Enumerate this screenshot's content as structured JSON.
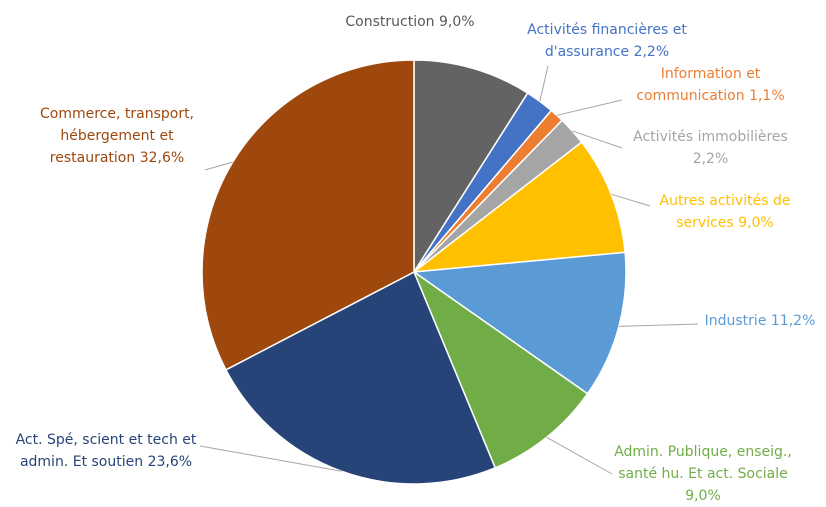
{
  "chart_data": {
    "type": "pie",
    "categories": [
      "Construction",
      "Activités financières et d'assurance",
      "Information et communication",
      "Activités immobilières",
      "Autres activités de services",
      "Industrie",
      "Admin. Publique, enseig., santé hu. Et act. Sociale",
      "Act. Spé, scient et tech et admin. Et soutien",
      "Commerce, transport, hébergement et restauration"
    ],
    "values": [
      9.0,
      2.2,
      1.1,
      2.2,
      9.0,
      11.2,
      9.0,
      23.6,
      32.6
    ],
    "value_labels": [
      "9,0%",
      "2,2%",
      "1,1%",
      "2,2%",
      "9,0%",
      "11,2%",
      "9,0%",
      "23,6%",
      "32,6%"
    ],
    "colors": [
      "#636363",
      "#4472c4",
      "#ed7d31",
      "#a5a5a5",
      "#ffc000",
      "#5b9bd5",
      "#70ad47",
      "#264478",
      "#9e480e"
    ]
  }
}
